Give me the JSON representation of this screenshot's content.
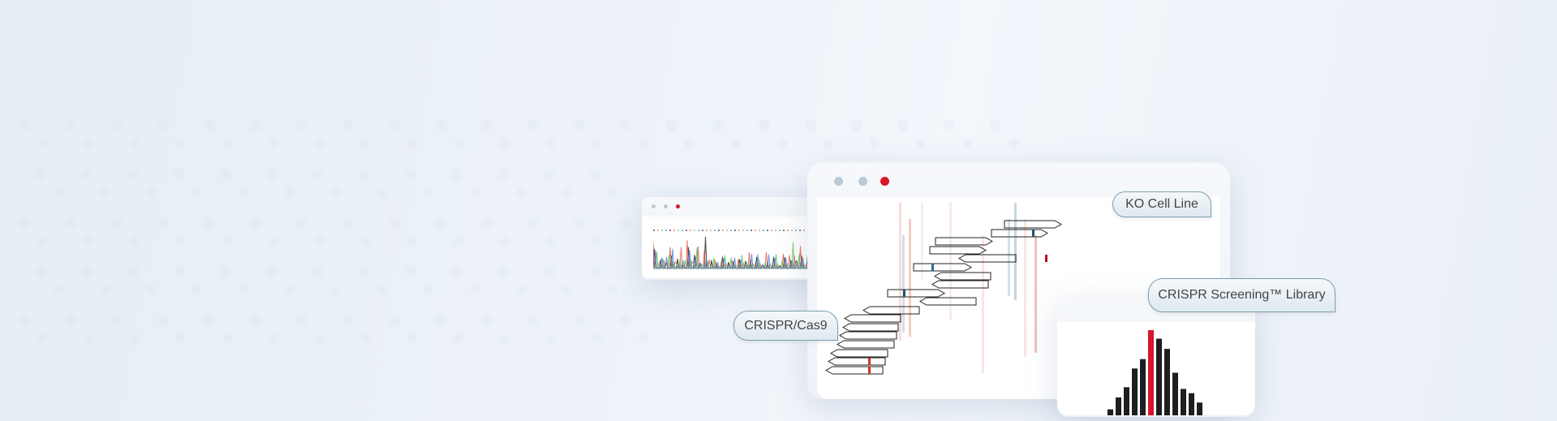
{
  "labels": {
    "ko_cell_line": "KO Cell Line",
    "crispr_cas9": "CRISPR/Cas9",
    "crispr_screening": "CRISPR Screening™ Library"
  },
  "colors": {
    "accent_red": "#d8152a",
    "window_dot": "#b9c9d6",
    "bar": "#1e1e1e"
  },
  "histogram": {
    "values": [
      7,
      21,
      33,
      55,
      66,
      100,
      90,
      78,
      50,
      31,
      26,
      15
    ],
    "highlight_index": 5
  }
}
